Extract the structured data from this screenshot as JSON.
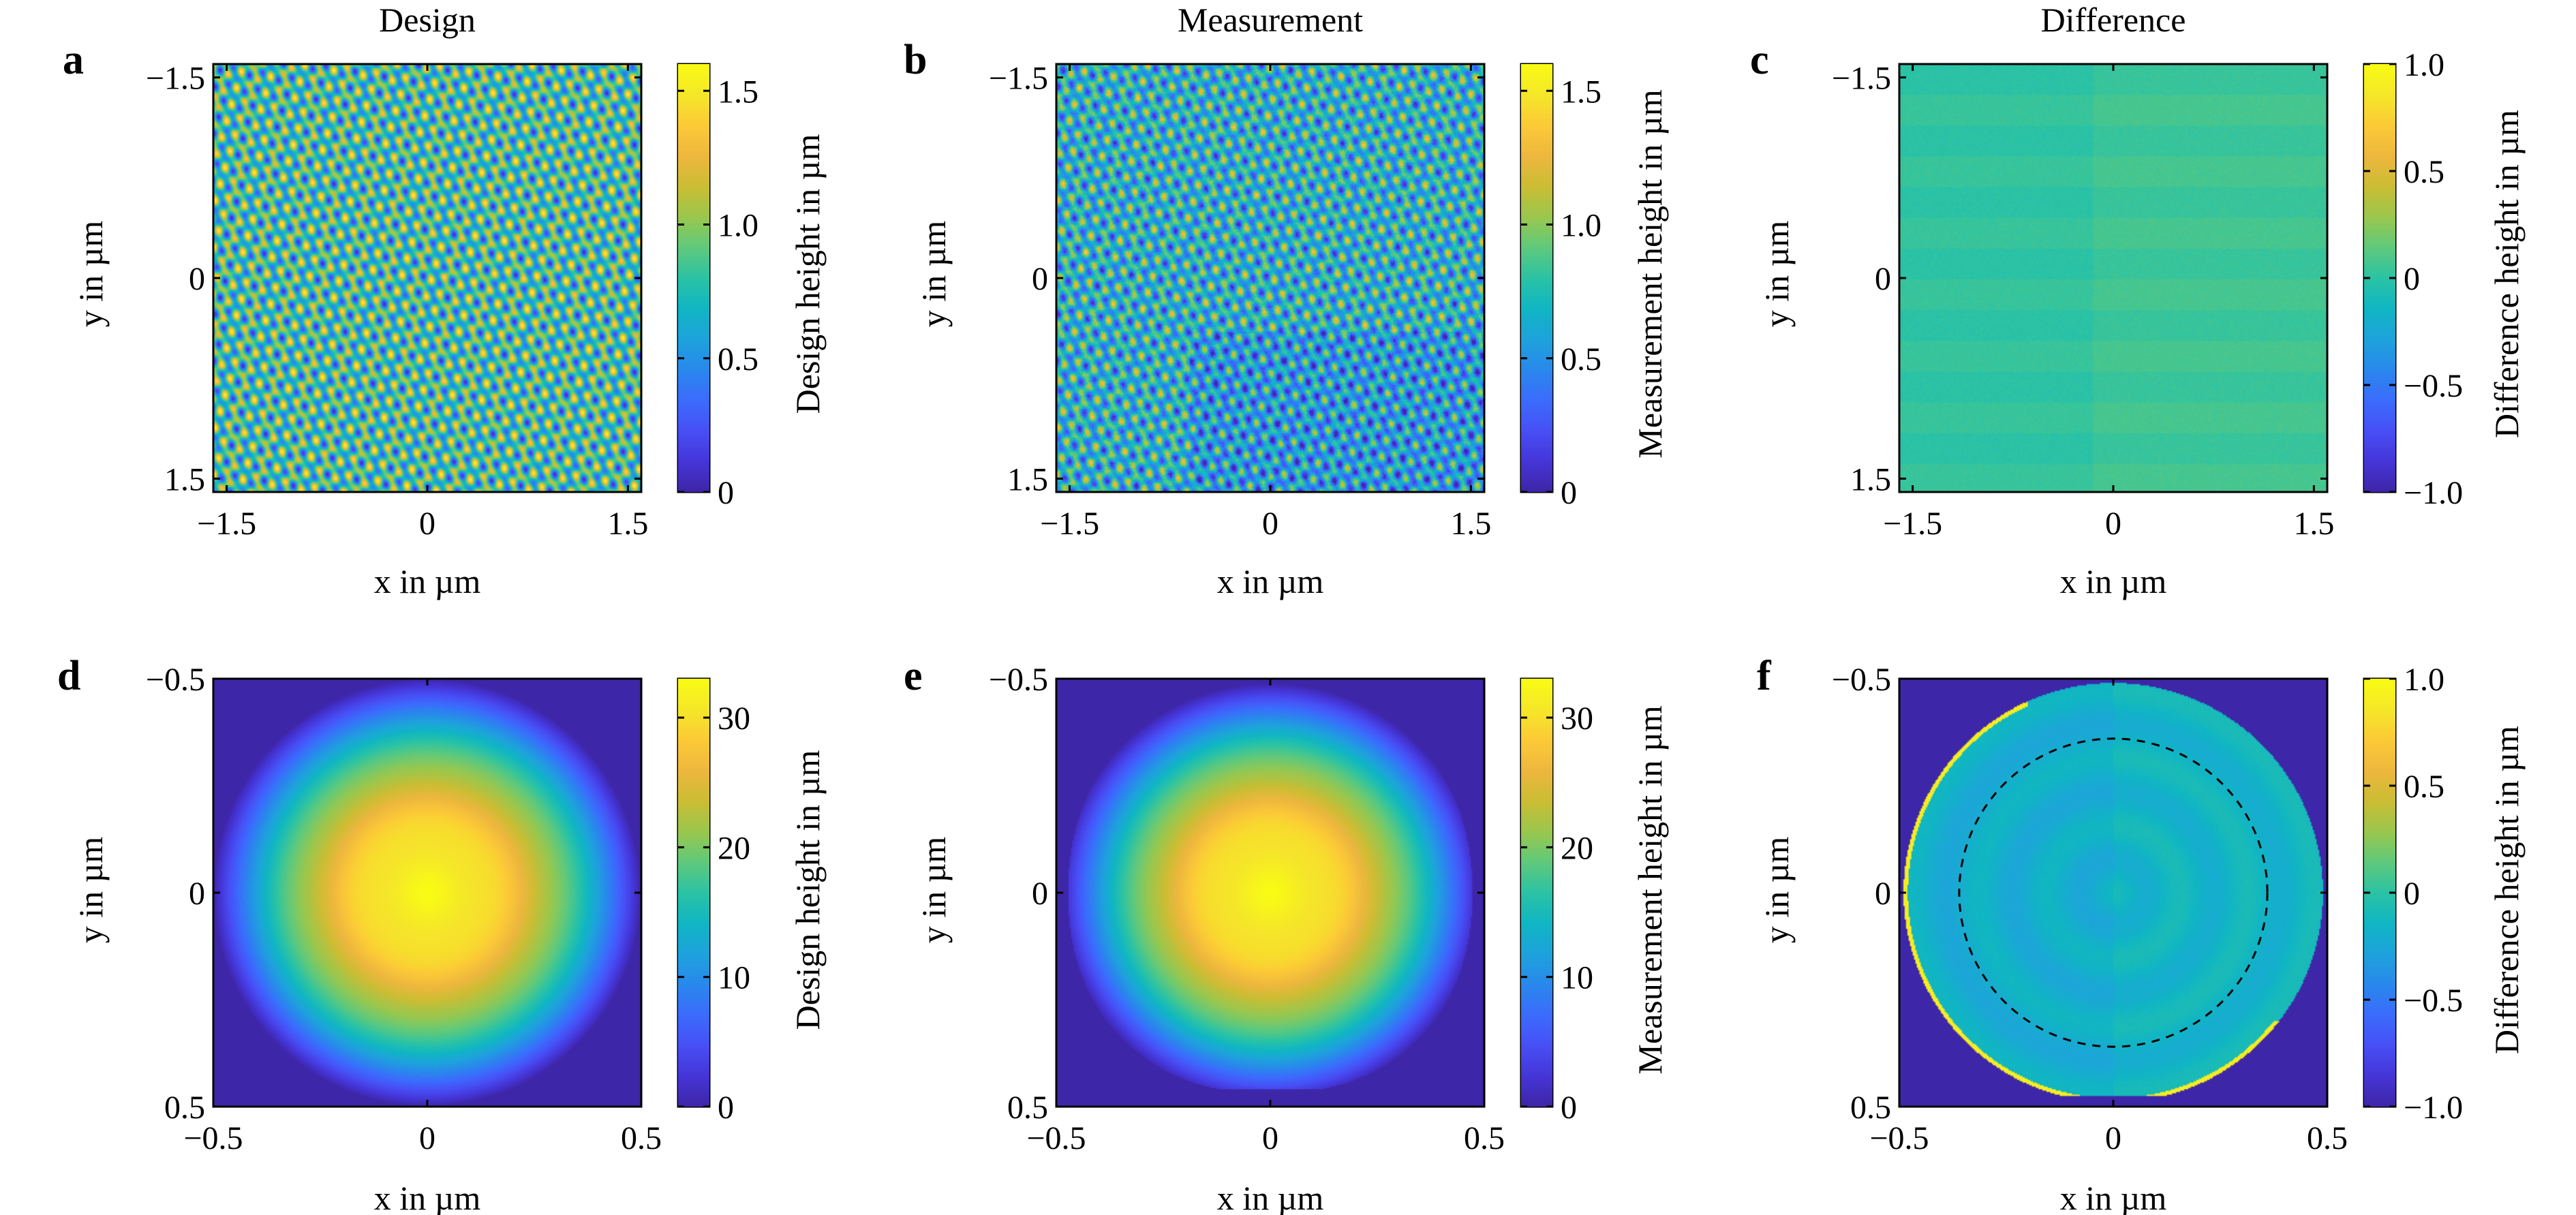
{
  "chart_data": [
    {
      "panel": "a",
      "type": "heatmap",
      "title": "Design",
      "xlabel": "x in µm",
      "ylabel": "y in µm",
      "colorbar_label": "Design height in µm",
      "xlim": [
        -1.6,
        1.6
      ],
      "ylim": [
        -1.6,
        1.6
      ],
      "y_direction": "down",
      "xticks": [
        {
          "v": -1.5,
          "t": "−1.5"
        },
        {
          "v": 0,
          "t": "0"
        },
        {
          "v": 1.5,
          "t": "1.5"
        }
      ],
      "yticks": [
        {
          "v": -1.5,
          "t": "−1.5"
        },
        {
          "v": 0,
          "t": "0"
        },
        {
          "v": 1.5,
          "t": "1.5"
        }
      ],
      "clim": [
        0,
        1.6
      ],
      "cticks": [
        {
          "v": 0,
          "t": "0"
        },
        {
          "v": 0.5,
          "t": "0.5"
        },
        {
          "v": 1.0,
          "t": "1.0"
        },
        {
          "v": 1.5,
          "t": "1.5"
        }
      ],
      "pattern": "periodic-lattice"
    },
    {
      "panel": "b",
      "type": "heatmap",
      "title": "Measurement",
      "xlabel": "x in µm",
      "ylabel": "y in µm",
      "colorbar_label": "Measurement height in µm",
      "xlim": [
        -1.6,
        1.6
      ],
      "ylim": [
        -1.6,
        1.6
      ],
      "y_direction": "down",
      "xticks": [
        {
          "v": -1.5,
          "t": "−1.5"
        },
        {
          "v": 0,
          "t": "0"
        },
        {
          "v": 1.5,
          "t": "1.5"
        }
      ],
      "yticks": [
        {
          "v": -1.5,
          "t": "−1.5"
        },
        {
          "v": 0,
          "t": "0"
        },
        {
          "v": 1.5,
          "t": "1.5"
        }
      ],
      "clim": [
        0,
        1.6
      ],
      "cticks": [
        {
          "v": 0,
          "t": "0"
        },
        {
          "v": 0.5,
          "t": "0.5"
        },
        {
          "v": 1.0,
          "t": "1.0"
        },
        {
          "v": 1.5,
          "t": "1.5"
        }
      ],
      "pattern": "periodic-lattice-measured"
    },
    {
      "panel": "c",
      "type": "heatmap",
      "title": "Difference",
      "xlabel": "x in µm",
      "ylabel": "y in µm",
      "colorbar_label": "Difference height in µm",
      "xlim": [
        -1.6,
        1.6
      ],
      "ylim": [
        -1.6,
        1.6
      ],
      "y_direction": "down",
      "xticks": [
        {
          "v": -1.5,
          "t": "−1.5"
        },
        {
          "v": 0,
          "t": "0"
        },
        {
          "v": 1.5,
          "t": "1.5"
        }
      ],
      "yticks": [
        {
          "v": -1.5,
          "t": "−1.5"
        },
        {
          "v": 0,
          "t": "0"
        },
        {
          "v": 1.5,
          "t": "1.5"
        }
      ],
      "clim": [
        -1.0,
        1.0
      ],
      "cticks": [
        {
          "v": -1.0,
          "t": "−1.0"
        },
        {
          "v": -0.5,
          "t": "−0.5"
        },
        {
          "v": 0,
          "t": "0"
        },
        {
          "v": 0.5,
          "t": "0.5"
        },
        {
          "v": 1.0,
          "t": "1.0"
        }
      ],
      "pattern": "near-zero-difference",
      "value_range": [
        -0.1,
        0.1
      ]
    },
    {
      "panel": "d",
      "type": "heatmap",
      "xlabel": "x in µm",
      "ylabel": "y in µm",
      "colorbar_label": "Design height in µm",
      "xlim": [
        -0.5,
        0.5
      ],
      "ylim": [
        -0.5,
        0.5
      ],
      "y_direction": "down",
      "xticks": [
        {
          "v": -0.5,
          "t": "−0.5"
        },
        {
          "v": 0,
          "t": "0"
        },
        {
          "v": 0.5,
          "t": "0.5"
        }
      ],
      "yticks": [
        {
          "v": -0.5,
          "t": "−0.5"
        },
        {
          "v": 0,
          "t": "0"
        },
        {
          "v": 0.5,
          "t": "0.5"
        }
      ],
      "clim": [
        0,
        33
      ],
      "cticks": [
        {
          "v": 0,
          "t": "0"
        },
        {
          "v": 10,
          "t": "10"
        },
        {
          "v": 20,
          "t": "20"
        },
        {
          "v": 30,
          "t": "30"
        }
      ],
      "pattern": "radial-lens",
      "peak": 33,
      "radius": 0.5
    },
    {
      "panel": "e",
      "type": "heatmap",
      "xlabel": "x in µm",
      "ylabel": "y in µm",
      "colorbar_label": "Measurement height in µm",
      "xlim": [
        -0.5,
        0.5
      ],
      "ylim": [
        -0.5,
        0.5
      ],
      "y_direction": "down",
      "xticks": [
        {
          "v": -0.5,
          "t": "−0.5"
        },
        {
          "v": 0,
          "t": "0"
        },
        {
          "v": 0.5,
          "t": "0.5"
        }
      ],
      "yticks": [
        {
          "v": -0.5,
          "t": "−0.5"
        },
        {
          "v": 0,
          "t": "0"
        },
        {
          "v": 0.5,
          "t": "0.5"
        }
      ],
      "clim": [
        0,
        33
      ],
      "cticks": [
        {
          "v": 0,
          "t": "0"
        },
        {
          "v": 10,
          "t": "10"
        },
        {
          "v": 20,
          "t": "20"
        },
        {
          "v": 30,
          "t": "30"
        }
      ],
      "pattern": "radial-lens-measured",
      "peak": 33,
      "radius": 0.49
    },
    {
      "panel": "f",
      "type": "heatmap",
      "xlabel": "x in µm",
      "ylabel": "y in µm",
      "colorbar_label": "Difference height in µm",
      "xlim": [
        -0.5,
        0.5
      ],
      "ylim": [
        -0.5,
        0.5
      ],
      "y_direction": "down",
      "xticks": [
        {
          "v": -0.5,
          "t": "−0.5"
        },
        {
          "v": 0,
          "t": "0"
        },
        {
          "v": 0.5,
          "t": "0.5"
        }
      ],
      "yticks": [
        {
          "v": -0.5,
          "t": "−0.5"
        },
        {
          "v": 0,
          "t": "0"
        },
        {
          "v": 0.5,
          "t": "0.5"
        }
      ],
      "clim": [
        -1.0,
        1.0
      ],
      "cticks": [
        {
          "v": -1.0,
          "t": "−1.0"
        },
        {
          "v": -0.5,
          "t": "−0.5"
        },
        {
          "v": 0,
          "t": "0"
        },
        {
          "v": 0.5,
          "t": "0.5"
        },
        {
          "v": 1.0,
          "t": "1.0"
        }
      ],
      "pattern": "lens-difference",
      "radius": 0.49,
      "dashed_circle_radius": 0.36
    }
  ],
  "colormap": [
    "#3e26a8",
    "#4536d9",
    "#4750f6",
    "#3b6cfd",
    "#2989ec",
    "#1ea3dc",
    "#10b6c3",
    "#2bc3a5",
    "#5fc97c",
    "#9ac74e",
    "#cbbd34",
    "#eeb73e",
    "#fcca37",
    "#f5e729",
    "#f9fb15"
  ],
  "colors": {
    "outside": "#3e26a8",
    "frame": "#000000",
    "dashed_circle": "#000000"
  }
}
